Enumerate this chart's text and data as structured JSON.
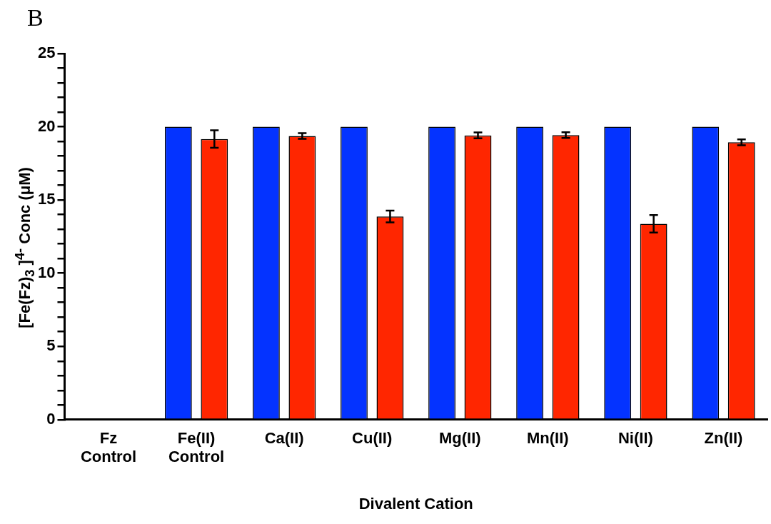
{
  "chart_data": {
    "type": "bar",
    "xlabel": "Divalent Cation",
    "ylabel": "[Fe(Fz)$_{3}$ ]$^{4-}$ Conc (μM)",
    "annotations": [
      "B"
    ],
    "categories": [
      "Fz Control",
      "Fe(II) Control",
      "Ca(II)",
      "Cu(II)",
      "Mg(II)",
      "Mn(II)",
      "Ni(II)",
      "Zn(II)"
    ],
    "series": [
      {
        "color": "#0433ff",
        "values": [
          null,
          20,
          20,
          20,
          20,
          20,
          20,
          20
        ]
      },
      {
        "color": "#ff2600",
        "values": [
          null,
          19.16,
          19.37,
          13.87,
          19.41,
          19.43,
          13.37,
          18.94
        ],
        "errors": [
          null,
          0.6,
          0.2,
          0.4,
          0.2,
          0.2,
          0.6,
          0.2
        ]
      }
    ],
    "ylim": [
      0,
      25
    ],
    "yticks": [
      0,
      {
        "value": 1,
        "label": null
      },
      {
        "value": 2,
        "label": null
      },
      {
        "value": 3,
        "label": null
      },
      {
        "value": 4,
        "label": null
      },
      5,
      {
        "value": 6,
        "label": null
      },
      {
        "value": 7,
        "label": null
      },
      {
        "value": 8,
        "label": null
      },
      {
        "value": 9,
        "label": null
      },
      10,
      {
        "value": 11,
        "label": null
      },
      {
        "value": 12,
        "label": null
      },
      {
        "value": 13,
        "label": null
      },
      {
        "value": 14,
        "label": null
      },
      15,
      {
        "value": 16,
        "label": null
      },
      {
        "value": 17,
        "label": null
      },
      {
        "value": 18,
        "label": null
      },
      {
        "value": 19,
        "label": null
      },
      20,
      {
        "value": 21,
        "label": null
      },
      {
        "value": 22,
        "label": null
      },
      {
        "value": 23,
        "label": null
      },
      {
        "value": 24,
        "label": null
      },
      25
    ],
    "grid": false,
    "legend": false
  }
}
